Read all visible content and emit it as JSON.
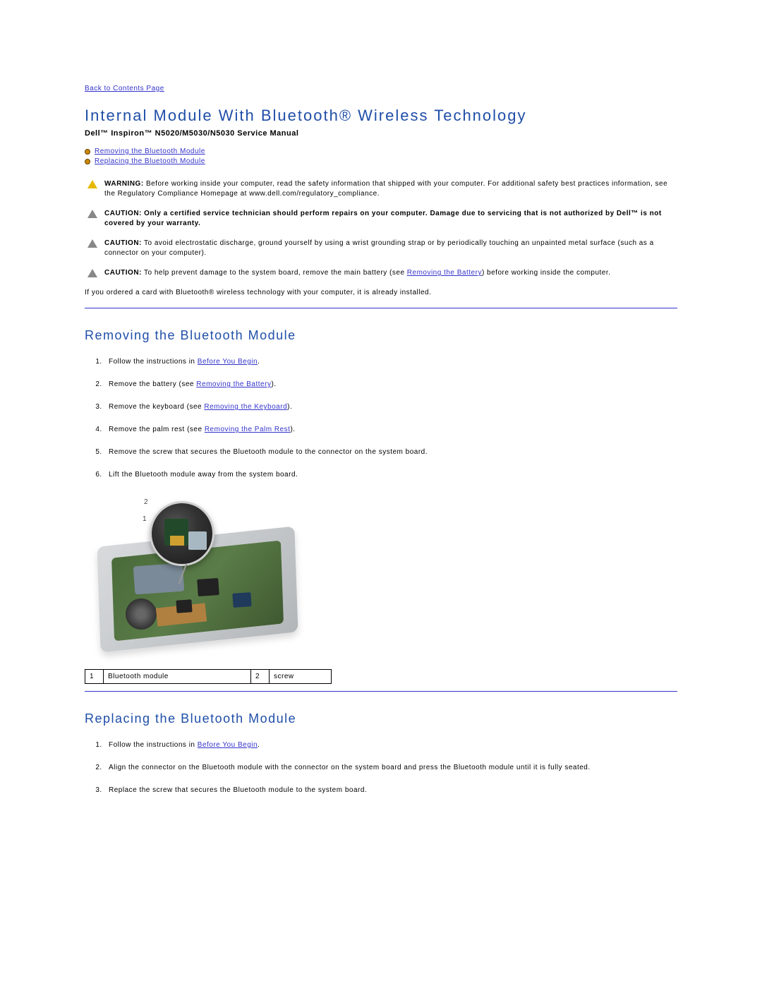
{
  "backLink": "Back to Contents Page",
  "h1": "Internal Module With Bluetooth® Wireless Technology",
  "subtitle": "Dell™ Inspiron™ N5020/M5030/N5030 Service Manual",
  "toc": {
    "item1": "Removing the Bluetooth Module",
    "item2": "Replacing the Bluetooth Module"
  },
  "notices": {
    "warn": {
      "label": "WARNING:",
      "text": " Before working inside your computer, read the safety information that shipped with your computer. For additional safety best practices information, see the Regulatory Compliance Homepage at www.dell.com/regulatory_compliance."
    },
    "c1": {
      "label": "CAUTION:",
      "bold": " Only a certified service technician should perform repairs on your computer. Damage due to servicing that is not authorized by Dell™ is not covered by your warranty."
    },
    "c2": {
      "label": "CAUTION:",
      "text": " To avoid electrostatic discharge, ground yourself by using a wrist grounding strap or by periodically touching an unpainted metal surface (such as a connector on your computer)."
    },
    "c3": {
      "label": "CAUTION:",
      "pre": " To help prevent damage to the system board, remove the main battery (see ",
      "link": "Removing the Battery",
      "post": ") before working inside the computer."
    }
  },
  "introPara": "If you ordered a card with Bluetooth® wireless technology with your computer, it is already installed.",
  "sections": {
    "remove": {
      "title": "Removing the Bluetooth Module",
      "steps": {
        "s1a": "Follow the instructions in ",
        "s1link": "Before You Begin",
        "s1b": ".",
        "s2a": "Remove the battery (see ",
        "s2link": "Removing the Battery",
        "s2b": ").",
        "s3a": "Remove the keyboard (see ",
        "s3link": "Removing the Keyboard",
        "s3b": ").",
        "s4a": "Remove the palm rest (see ",
        "s4link": "Removing the Palm Rest",
        "s4b": ").",
        "s5": "Remove the screw that secures the Bluetooth module to the connector on the system board.",
        "s6": "Lift the Bluetooth module away from the system board."
      }
    },
    "replace": {
      "title": "Replacing the Bluetooth Module",
      "steps": {
        "s1a": "Follow the instructions in ",
        "s1link": "Before You Begin",
        "s1b": ".",
        "s2": "Align the connector on the Bluetooth module with the connector on the system board and press the Bluetooth module until it is fully seated.",
        "s3": "Replace the screw that secures the Bluetooth module to the system board."
      }
    }
  },
  "callouts": {
    "c1": "1",
    "c2": "2"
  },
  "legend": {
    "n1": "1",
    "t1": "Bluetooth module",
    "n2": "2",
    "t2": "screw"
  },
  "colors": {
    "link": "#3333cc",
    "heading": "#1f4ea8",
    "warnTriangle": "#e6b800",
    "cautionTriangle": "#888888",
    "bullet": "#cc8800"
  }
}
